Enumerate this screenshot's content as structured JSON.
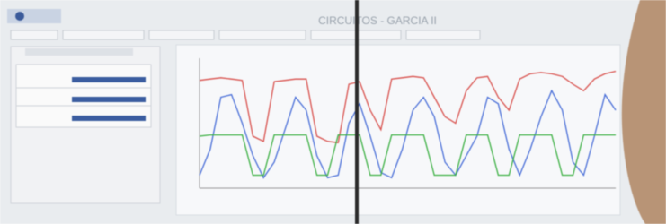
{
  "header": {
    "title": "CIRCUITOS - GARCIA II"
  },
  "chart_data": {
    "type": "line",
    "series": [
      {
        "color": "#d9534f",
        "values": [
          83,
          84,
          85,
          84,
          83,
          40,
          36,
          82,
          83,
          84,
          84,
          40,
          36,
          35,
          80,
          82,
          60,
          45,
          84,
          85,
          86,
          85,
          70,
          55,
          50,
          75,
          85,
          86,
          70,
          60,
          84,
          88,
          89,
          88,
          86,
          80,
          75,
          84,
          88,
          90
        ]
      },
      {
        "color": "#4a6fd8",
        "values": [
          10,
          30,
          70,
          72,
          50,
          25,
          8,
          20,
          45,
          70,
          60,
          25,
          8,
          10,
          50,
          65,
          40,
          12,
          8,
          30,
          60,
          70,
          55,
          20,
          10,
          25,
          40,
          70,
          65,
          30,
          10,
          30,
          55,
          75,
          60,
          20,
          10,
          40,
          72,
          60
        ]
      },
      {
        "color": "#3cb043",
        "values": [
          40,
          41,
          41,
          41,
          41,
          10,
          10,
          41,
          41,
          41,
          41,
          10,
          10,
          41,
          41,
          41,
          10,
          10,
          41,
          41,
          41,
          41,
          10,
          10,
          10,
          41,
          41,
          41,
          10,
          10,
          41,
          41,
          41,
          41,
          10,
          10,
          41,
          41,
          41,
          41
        ]
      }
    ],
    "ylim": [
      0,
      100
    ]
  }
}
